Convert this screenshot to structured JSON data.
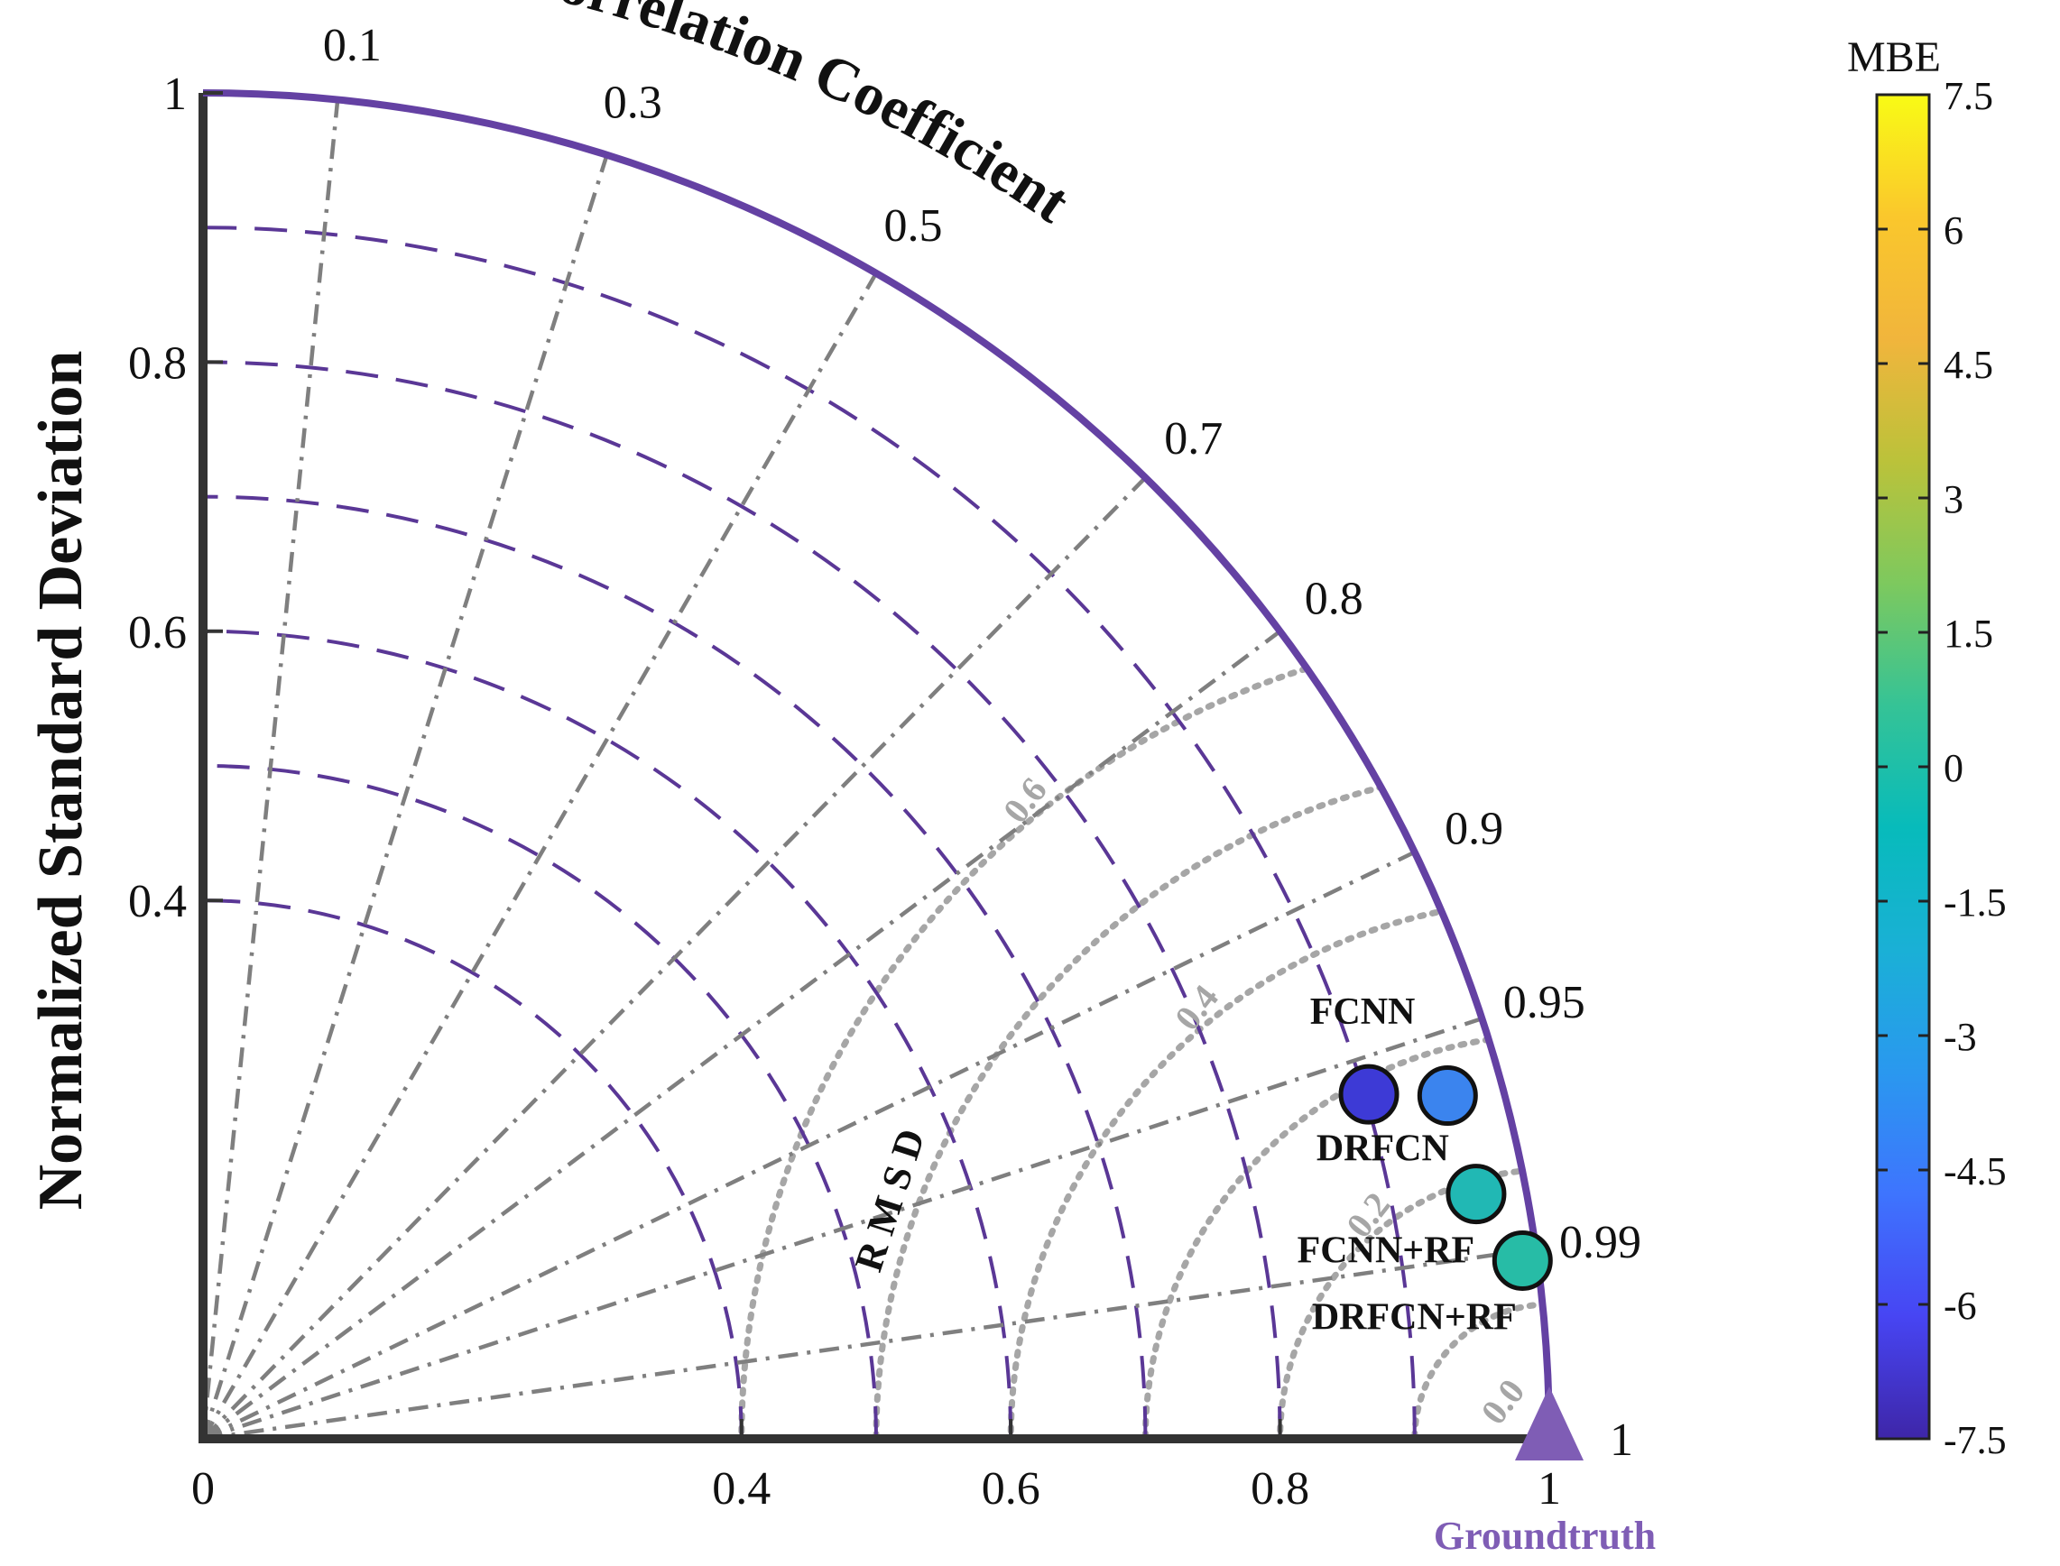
{
  "chart_data": {
    "type": "taylor-diagram",
    "ylabel": "Normalized Standard Deviation",
    "arc_label": "Correlation Coefficient",
    "rmsd_label": "R M S D",
    "xlim": [
      0,
      1
    ],
    "ylim": [
      0,
      1
    ],
    "x_ticks": [
      "0",
      "0.4",
      "0.6",
      "0.8",
      "1"
    ],
    "x_tick_values": [
      0,
      0.4,
      0.6,
      0.8,
      1
    ],
    "y_ticks": [
      "0.4",
      "0.6",
      "0.8",
      "1"
    ],
    "y_tick_values": [
      0.4,
      0.6,
      0.8,
      1
    ],
    "correlation_ticks": [
      "0.1",
      "0.3",
      "0.5",
      "0.7",
      "0.8",
      "0.9",
      "0.95",
      "0.99"
    ],
    "correlation_values": [
      0.1,
      0.3,
      0.5,
      0.7,
      0.8,
      0.9,
      0.95,
      0.99
    ],
    "std_contours": [
      0.4,
      0.5,
      0.6,
      0.7,
      0.8,
      0.9
    ],
    "rmsd_contours": [
      0.0,
      0.1,
      0.2,
      0.3,
      0.4,
      0.5,
      0.6
    ],
    "rmsd_tick_labels": [
      {
        "text": "0.0",
        "value": 0.0
      },
      {
        "text": "0.2",
        "value": 0.2
      },
      {
        "text": "0.4",
        "value": 0.4
      },
      {
        "text": "0.6",
        "value": 0.6
      }
    ],
    "reference": {
      "label": "Groundtruth",
      "std": 1.0,
      "corr": 1.0,
      "color": "#7f5db5"
    },
    "points": [
      {
        "name": "FCNN",
        "corr": 0.959,
        "std": 0.903,
        "mbe": -6.3,
        "color": "#3d3ad6"
      },
      {
        "name": "DRFCN",
        "corr": 0.964,
        "std": 0.959,
        "mbe": -3.4,
        "color": "#3b84ee"
      },
      {
        "name": "FCNN+RF",
        "corr": 0.982,
        "std": 0.963,
        "mbe": 0.7,
        "color": "#21b8b4"
      },
      {
        "name": "DRFCN+RF",
        "corr": 0.991,
        "std": 0.989,
        "mbe": 1.1,
        "color": "#27bca6"
      }
    ],
    "colorbar": {
      "label": "MBE",
      "min": -7.5,
      "max": 7.5,
      "ticks": [
        "7.5",
        "6",
        "4.5",
        "3",
        "1.5",
        "0",
        "-1.5",
        "-3",
        "-4.5",
        "-6",
        "-7.5"
      ],
      "tick_values": [
        7.5,
        6,
        4.5,
        3,
        1.5,
        0,
        -1.5,
        -3,
        -4.5,
        -6,
        -7.5
      ],
      "colormap": [
        "#3e26a8",
        "#4745f3",
        "#3e74fe",
        "#2a98ef",
        "#1ab0d6",
        "#07bbbb",
        "#35c396",
        "#7dc95e",
        "#bbc23a",
        "#f1b53c",
        "#fac72c",
        "#f9fb15"
      ]
    },
    "colors": {
      "arc": "#6441a3",
      "std_contour": "#5a3796",
      "corr_line": "#7f7f7f",
      "rmsd_contour": "#a6a6a6",
      "axis": "#333333"
    }
  }
}
